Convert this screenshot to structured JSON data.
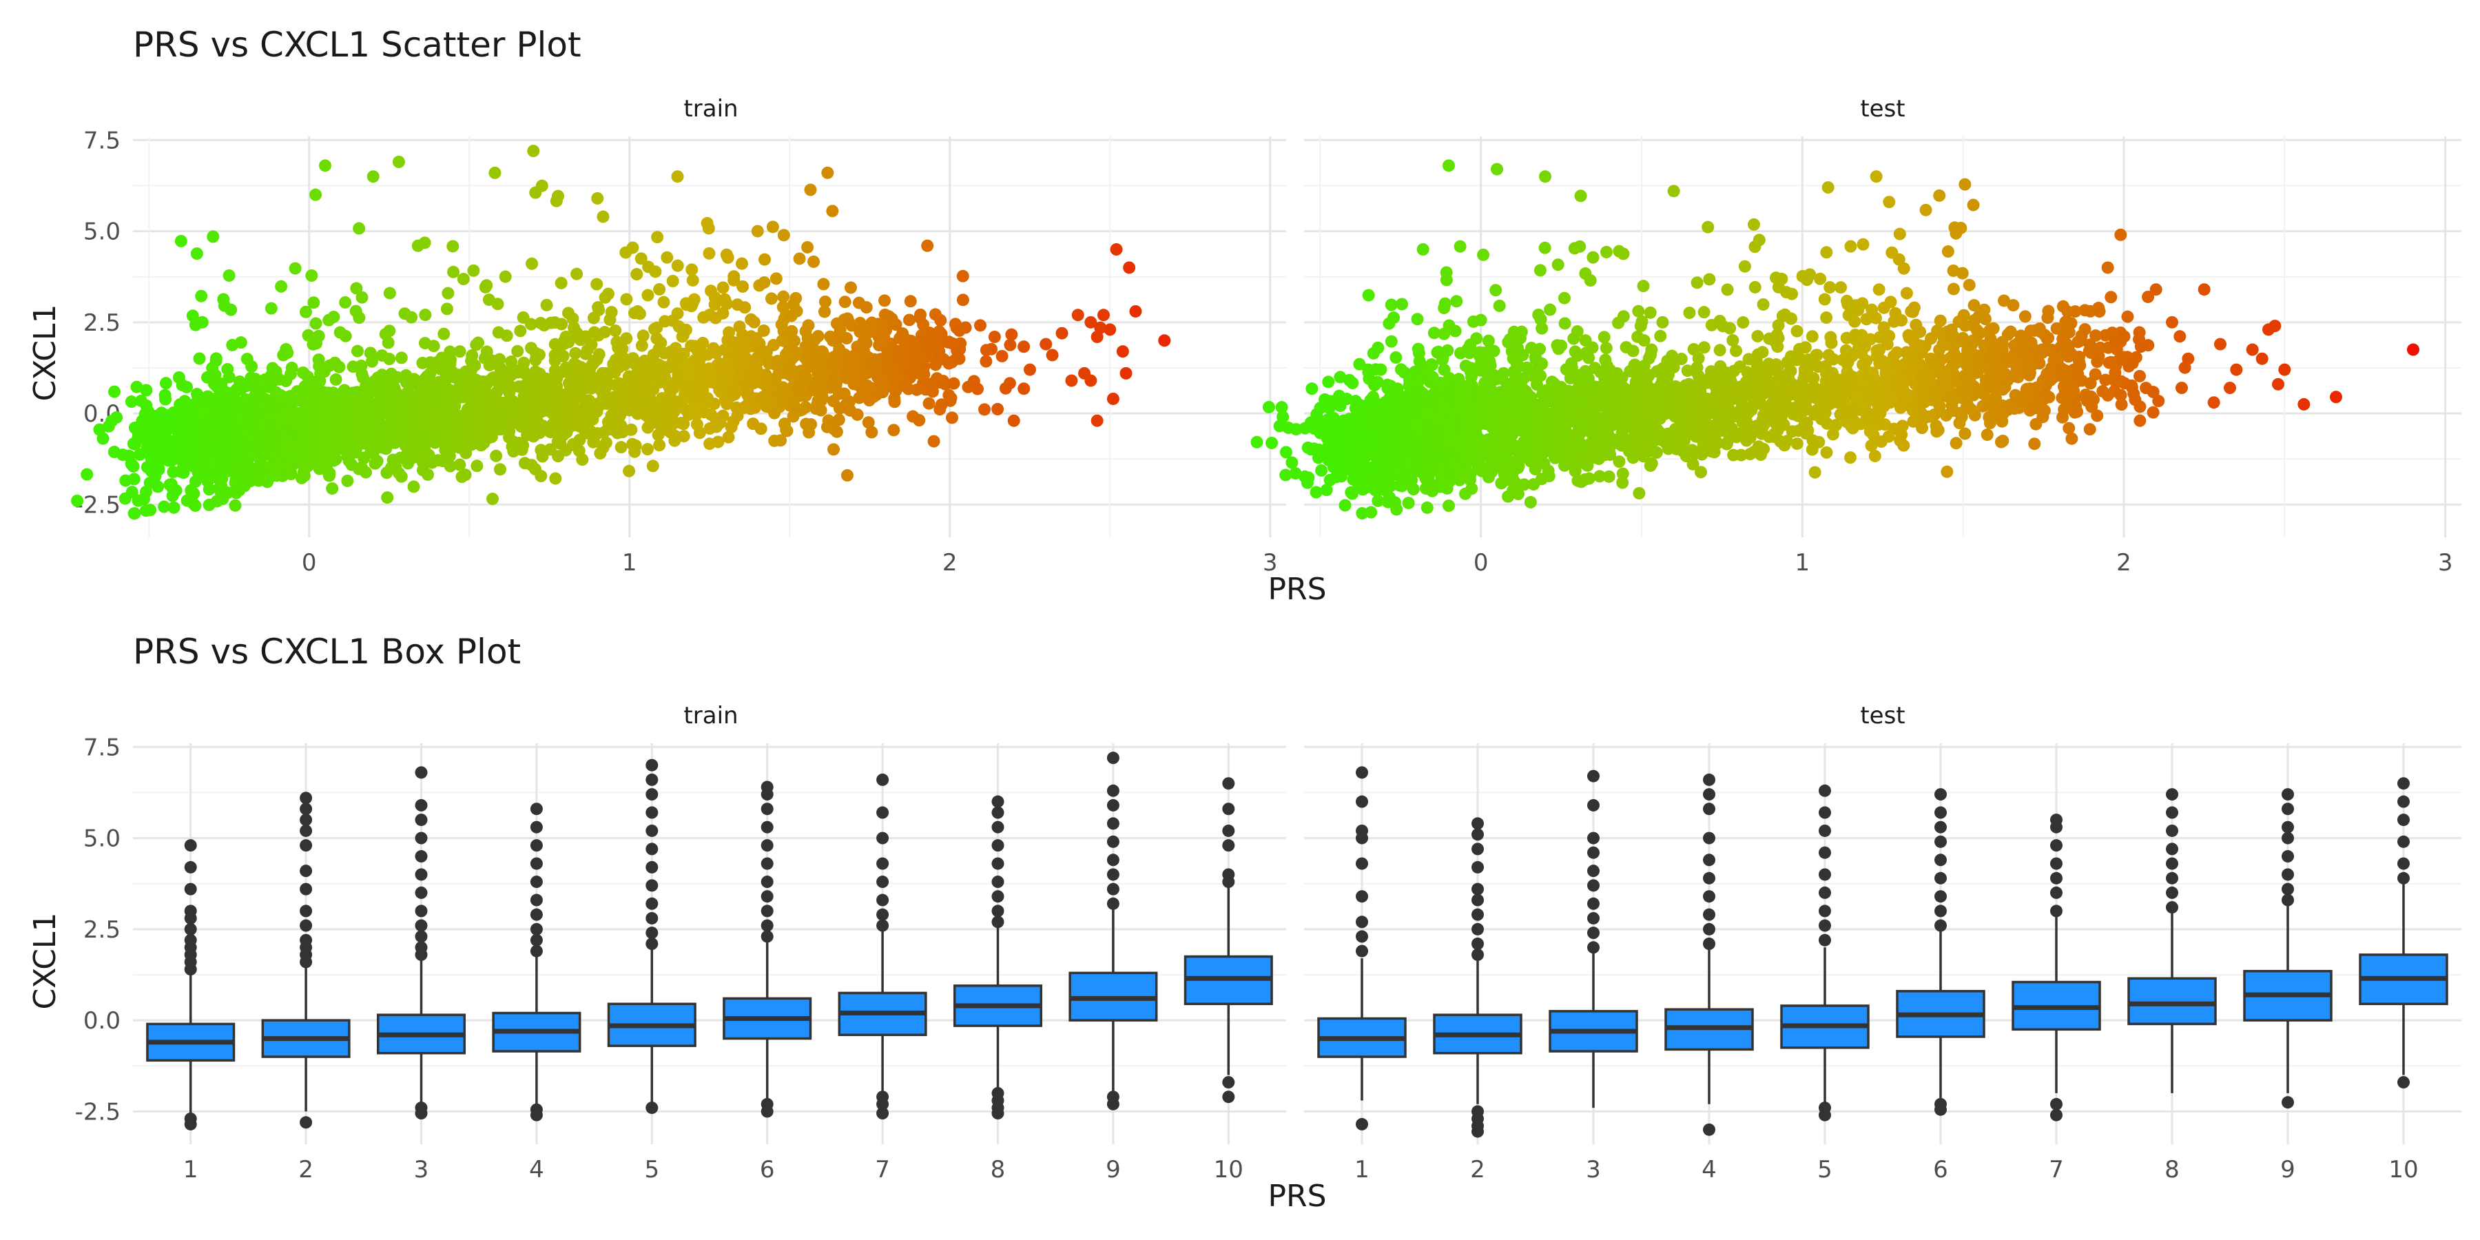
{
  "chart_data": [
    {
      "type": "scatter",
      "title": "PRS vs CXCL1 Scatter Plot",
      "xlabel": "PRS",
      "ylabel": "CXCL1",
      "xlim": [
        -0.55,
        3.05
      ],
      "ylim": [
        -3.4,
        7.6
      ],
      "x_ticks": [
        0,
        1,
        2,
        3
      ],
      "y_ticks": [
        -2.5,
        0.0,
        2.5,
        5.0,
        7.5
      ],
      "y_tick_labels": [
        "-2.5",
        "0.0",
        "2.5",
        "5.0",
        "7.5"
      ],
      "grid": true,
      "legend": "none",
      "color_gradient": {
        "low": "#44ee00",
        "mid": "#c9b000",
        "high": "#ee1100"
      },
      "panels": [
        {
          "label": "train",
          "trend": {
            "intercept": -0.4,
            "slope": 0.95,
            "x_range": [
              -0.4,
              2.0
            ]
          },
          "outliers": [
            {
              "x": -0.46,
              "y": -0.8
            },
            {
              "x": -0.4,
              "y": -1.6
            },
            {
              "x": -0.36,
              "y": -2.2
            },
            {
              "x": -0.3,
              "y": 4.85
            },
            {
              "x": 0.02,
              "y": 6.0
            },
            {
              "x": 0.05,
              "y": 6.8
            },
            {
              "x": 0.2,
              "y": 6.5
            },
            {
              "x": 0.28,
              "y": 6.9
            },
            {
              "x": 0.58,
              "y": 6.6
            },
            {
              "x": 0.7,
              "y": 7.2
            },
            {
              "x": 0.9,
              "y": 5.9
            },
            {
              "x": 1.15,
              "y": 6.5
            },
            {
              "x": 1.4,
              "y": 5.0
            },
            {
              "x": 1.68,
              "y": -1.7
            },
            {
              "x": 1.93,
              "y": 4.6
            },
            {
              "x": 2.14,
              "y": 2.1
            },
            {
              "x": 2.2,
              "y": -0.2
            },
            {
              "x": 2.25,
              "y": 1.2
            },
            {
              "x": 2.3,
              "y": 1.9
            },
            {
              "x": 2.32,
              "y": 1.6
            },
            {
              "x": 2.35,
              "y": 2.2
            },
            {
              "x": 2.38,
              "y": 0.9
            },
            {
              "x": 2.4,
              "y": 2.7
            },
            {
              "x": 2.42,
              "y": 1.1
            },
            {
              "x": 2.44,
              "y": 2.5
            },
            {
              "x": 2.46,
              "y": 2.1
            },
            {
              "x": 2.47,
              "y": 2.35
            },
            {
              "x": 2.48,
              "y": 2.7
            },
            {
              "x": 2.5,
              "y": 2.3
            },
            {
              "x": 2.51,
              "y": 0.4
            },
            {
              "x": 2.52,
              "y": 4.5
            },
            {
              "x": 2.54,
              "y": 1.7
            },
            {
              "x": 2.55,
              "y": 1.1
            },
            {
              "x": 2.56,
              "y": 4.0
            },
            {
              "x": 2.58,
              "y": 2.8
            },
            {
              "x": 2.46,
              "y": -0.2
            },
            {
              "x": 2.44,
              "y": 0.9
            },
            {
              "x": 2.67,
              "y": 2.0
            }
          ]
        },
        {
          "label": "test",
          "trend": {
            "intercept": -0.4,
            "slope": 0.95,
            "x_range": [
              -0.35,
              1.95
            ]
          },
          "outliers": [
            {
              "x": -0.48,
              "y": -2.1
            },
            {
              "x": -0.4,
              "y": -2.2
            },
            {
              "x": -0.35,
              "y": 1.2
            },
            {
              "x": -0.32,
              "y": 1.8
            },
            {
              "x": -0.18,
              "y": 4.5
            },
            {
              "x": -0.1,
              "y": 6.8
            },
            {
              "x": 0.05,
              "y": 6.7
            },
            {
              "x": 0.2,
              "y": 6.5
            },
            {
              "x": 0.6,
              "y": 6.1
            },
            {
              "x": 1.08,
              "y": 6.2
            },
            {
              "x": 1.23,
              "y": 6.5
            },
            {
              "x": 1.27,
              "y": 5.8
            },
            {
              "x": 1.45,
              "y": -1.6
            },
            {
              "x": 1.95,
              "y": 4.0
            },
            {
              "x": 1.99,
              "y": 4.9
            },
            {
              "x": 2.05,
              "y": -0.2
            },
            {
              "x": 2.1,
              "y": 3.4
            },
            {
              "x": 2.15,
              "y": 2.5
            },
            {
              "x": 2.18,
              "y": 0.7
            },
            {
              "x": 2.2,
              "y": 1.5
            },
            {
              "x": 2.25,
              "y": 3.4
            },
            {
              "x": 2.28,
              "y": 0.3
            },
            {
              "x": 2.3,
              "y": 1.9
            },
            {
              "x": 2.33,
              "y": 0.7
            },
            {
              "x": 2.35,
              "y": 1.2
            },
            {
              "x": 2.4,
              "y": 1.75
            },
            {
              "x": 2.43,
              "y": 1.5
            },
            {
              "x": 2.45,
              "y": 2.3
            },
            {
              "x": 2.47,
              "y": 2.4
            },
            {
              "x": 2.5,
              "y": 1.2
            },
            {
              "x": 2.48,
              "y": 0.8
            },
            {
              "x": 2.56,
              "y": 0.25
            },
            {
              "x": 2.66,
              "y": 0.45
            },
            {
              "x": 2.9,
              "y": 1.75
            }
          ]
        }
      ]
    },
    {
      "type": "box",
      "title": "PRS vs CXCL1 Box Plot",
      "xlabel": "PRS",
      "ylabel": "CXCL1",
      "categories": [
        "1",
        "2",
        "3",
        "4",
        "5",
        "6",
        "7",
        "8",
        "9",
        "10"
      ],
      "ylim": [
        -3.4,
        7.6
      ],
      "y_ticks": [
        -2.5,
        0.0,
        2.5,
        5.0,
        7.5
      ],
      "y_tick_labels": [
        "-2.5",
        "0.0",
        "2.5",
        "5.0",
        "7.5"
      ],
      "grid": true,
      "legend": "none",
      "box_color": "#2190ff",
      "panels": [
        {
          "label": "train",
          "boxes": [
            {
              "q1": -1.1,
              "median": -0.6,
              "q3": -0.1,
              "whisker_low": -2.6,
              "whisker_high": 1.3,
              "outliers": [
                -2.7,
                -2.85,
                1.4,
                1.6,
                1.8,
                2.0,
                2.2,
                2.5,
                2.8,
                3.0,
                3.6,
                4.2,
                4.8
              ]
            },
            {
              "q1": -1.0,
              "median": -0.5,
              "q3": 0.0,
              "whisker_low": -2.5,
              "whisker_high": 1.5,
              "outliers": [
                -2.8,
                1.6,
                1.8,
                2.0,
                2.2,
                2.6,
                3.0,
                3.6,
                4.1,
                4.8,
                5.2,
                5.5,
                5.8,
                6.1
              ]
            },
            {
              "q1": -0.9,
              "median": -0.4,
              "q3": 0.15,
              "whisker_low": -2.3,
              "whisker_high": 1.7,
              "outliers": [
                -2.4,
                -2.55,
                1.8,
                2.0,
                2.3,
                2.6,
                3.0,
                3.5,
                4.0,
                4.5,
                5.0,
                5.5,
                5.9,
                6.8
              ]
            },
            {
              "q1": -0.85,
              "median": -0.3,
              "q3": 0.2,
              "whisker_low": -2.3,
              "whisker_high": 1.8,
              "outliers": [
                -2.45,
                -2.6,
                1.9,
                2.2,
                2.5,
                2.9,
                3.3,
                3.8,
                4.3,
                4.8,
                5.3,
                5.8
              ]
            },
            {
              "q1": -0.7,
              "median": -0.15,
              "q3": 0.45,
              "whisker_low": -2.3,
              "whisker_high": 2.0,
              "outliers": [
                -2.4,
                2.1,
                2.4,
                2.8,
                3.2,
                3.7,
                4.2,
                4.7,
                5.2,
                5.7,
                6.2,
                6.6,
                7.0
              ]
            },
            {
              "q1": -0.5,
              "median": 0.05,
              "q3": 0.6,
              "whisker_low": -2.2,
              "whisker_high": 2.2,
              "outliers": [
                -2.3,
                -2.5,
                2.3,
                2.6,
                3.0,
                3.4,
                3.8,
                4.3,
                4.8,
                5.3,
                5.8,
                6.2,
                6.4
              ]
            },
            {
              "q1": -0.4,
              "median": 0.2,
              "q3": 0.75,
              "whisker_low": -2.0,
              "whisker_high": 2.5,
              "outliers": [
                -2.1,
                -2.3,
                -2.55,
                2.6,
                2.9,
                3.3,
                3.8,
                4.3,
                5.0,
                5.7,
                6.6
              ]
            },
            {
              "q1": -0.15,
              "median": 0.4,
              "q3": 0.95,
              "whisker_low": -1.9,
              "whisker_high": 2.6,
              "outliers": [
                -2.0,
                -2.2,
                -2.4,
                -2.55,
                2.7,
                3.0,
                3.4,
                3.8,
                4.3,
                4.8,
                5.3,
                5.7,
                6.0
              ]
            },
            {
              "q1": 0.0,
              "median": 0.6,
              "q3": 1.3,
              "whisker_low": -2.0,
              "whisker_high": 3.1,
              "outliers": [
                -2.1,
                -2.3,
                3.2,
                3.6,
                4.0,
                4.4,
                4.9,
                5.4,
                5.9,
                6.3,
                7.2
              ]
            },
            {
              "q1": 0.45,
              "median": 1.15,
              "q3": 1.75,
              "whisker_low": -1.5,
              "whisker_high": 3.7,
              "outliers": [
                -1.7,
                -2.1,
                3.8,
                4.0,
                4.8,
                5.2,
                5.8,
                6.5
              ]
            }
          ]
        },
        {
          "label": "test",
          "boxes": [
            {
              "q1": -1.0,
              "median": -0.5,
              "q3": 0.05,
              "whisker_low": -2.2,
              "whisker_high": 1.7,
              "outliers": [
                -2.85,
                1.9,
                2.3,
                2.7,
                3.4,
                4.3,
                5.0,
                5.2,
                6.0,
                6.8
              ]
            },
            {
              "q1": -0.9,
              "median": -0.4,
              "q3": 0.15,
              "whisker_low": -2.3,
              "whisker_high": 1.7,
              "outliers": [
                -2.5,
                -2.7,
                -2.9,
                -3.05,
                1.8,
                2.1,
                2.5,
                2.9,
                3.3,
                3.6,
                4.2,
                4.7,
                5.1,
                5.4
              ]
            },
            {
              "q1": -0.85,
              "median": -0.3,
              "q3": 0.25,
              "whisker_low": -2.4,
              "whisker_high": 1.9,
              "outliers": [
                2.0,
                2.4,
                2.8,
                3.2,
                3.7,
                4.1,
                4.6,
                5.0,
                5.9,
                6.7
              ]
            },
            {
              "q1": -0.8,
              "median": -0.2,
              "q3": 0.3,
              "whisker_low": -2.3,
              "whisker_high": 2.0,
              "outliers": [
                -3.0,
                2.1,
                2.5,
                2.9,
                3.4,
                3.9,
                4.4,
                5.0,
                5.8,
                6.2,
                6.6
              ]
            },
            {
              "q1": -0.75,
              "median": -0.15,
              "q3": 0.4,
              "whisker_low": -2.3,
              "whisker_high": 2.0,
              "outliers": [
                -2.4,
                -2.6,
                2.2,
                2.6,
                3.0,
                3.5,
                4.0,
                4.6,
                5.2,
                5.7,
                6.3
              ]
            },
            {
              "q1": -0.45,
              "median": 0.15,
              "q3": 0.8,
              "whisker_low": -2.2,
              "whisker_high": 2.5,
              "outliers": [
                -2.3,
                -2.45,
                2.6,
                3.0,
                3.4,
                3.9,
                4.4,
                4.9,
                5.3,
                5.7,
                6.2
              ]
            },
            {
              "q1": -0.25,
              "median": 0.35,
              "q3": 1.05,
              "whisker_low": -2.0,
              "whisker_high": 2.9,
              "outliers": [
                -2.3,
                -2.6,
                3.0,
                3.5,
                3.9,
                4.3,
                4.8,
                5.3,
                5.5
              ]
            },
            {
              "q1": -0.1,
              "median": 0.45,
              "q3": 1.15,
              "whisker_low": -2.0,
              "whisker_high": 3.0,
              "outliers": [
                3.1,
                3.5,
                3.9,
                4.3,
                4.7,
                5.2,
                5.7,
                6.2
              ]
            },
            {
              "q1": 0.0,
              "median": 0.7,
              "q3": 1.35,
              "whisker_low": -2.0,
              "whisker_high": 3.2,
              "outliers": [
                -2.25,
                3.3,
                3.6,
                4.0,
                4.5,
                5.0,
                5.3,
                5.8,
                6.2
              ]
            },
            {
              "q1": 0.45,
              "median": 1.15,
              "q3": 1.8,
              "whisker_low": -1.5,
              "whisker_high": 3.8,
              "outliers": [
                -1.7,
                3.9,
                4.3,
                4.9,
                5.5,
                6.0,
                6.5
              ]
            }
          ]
        }
      ]
    }
  ]
}
